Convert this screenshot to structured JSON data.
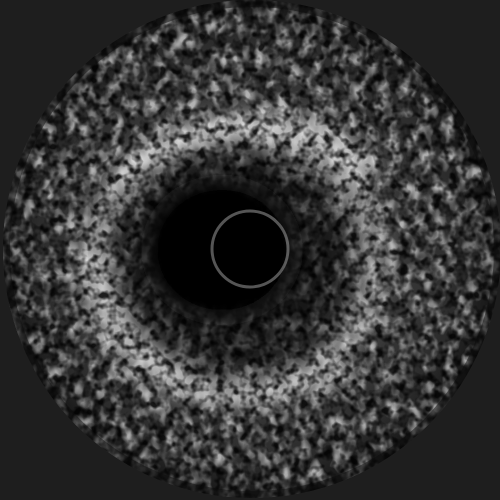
{
  "image": {
    "kind": "intravascular-ultrasound-cross-section",
    "colors": {
      "background": "#1e1e1e",
      "field_dark": "#0a0a0a",
      "speckle_bright": "#f2f2f2",
      "speckle_mid": "#8c8c8c",
      "lumen": "#000000",
      "catheter_ring": "#a0a0a0"
    }
  }
}
